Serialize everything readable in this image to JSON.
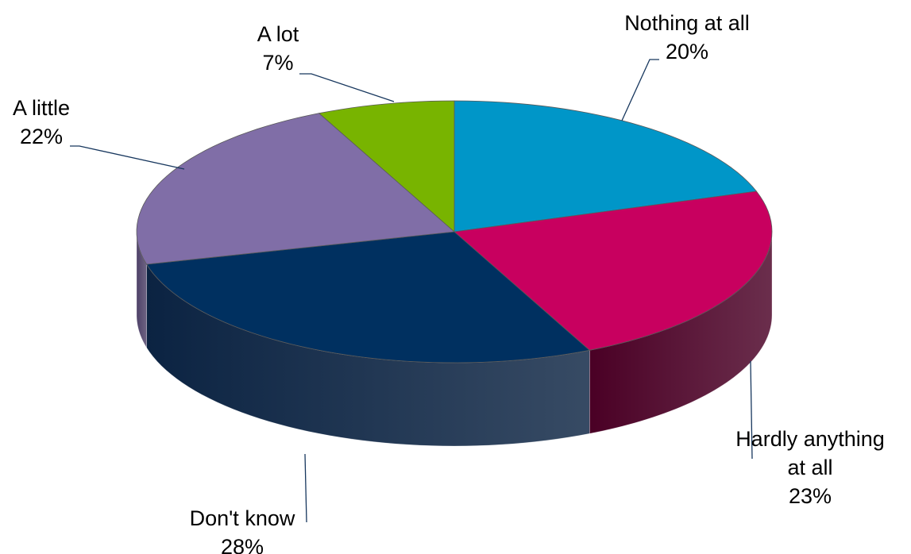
{
  "chart_data": {
    "type": "pie",
    "style": "3d",
    "slices": [
      {
        "label": "Nothing at all",
        "label_lines": [
          "Nothing at all"
        ],
        "value": 20,
        "value_label": "20%",
        "color": "#0096C8",
        "side_color": "#005F82"
      },
      {
        "label": "Hardly anything at all",
        "label_lines": [
          "Hardly anything",
          "at all"
        ],
        "value": 23,
        "value_label": "23%",
        "color": "#C8005F",
        "side_color": "#4A0025"
      },
      {
        "label": "Don't know",
        "label_lines": [
          "Don't know"
        ],
        "value": 28,
        "value_label": "28%",
        "color": "#003060",
        "side_color": "#0B2342"
      },
      {
        "label": "A little",
        "label_lines": [
          "A little"
        ],
        "value": 22,
        "value_label": "22%",
        "color": "#806EA7",
        "side_color": "#4E4168"
      },
      {
        "label": "A lot",
        "label_lines": [
          "A lot"
        ],
        "value": 7,
        "value_label": "7%",
        "color": "#78B400",
        "side_color": "#4A7000"
      }
    ]
  }
}
